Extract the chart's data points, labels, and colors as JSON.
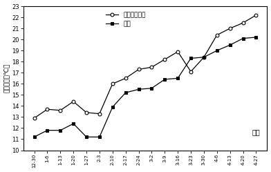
{
  "x_labels": [
    "12-30",
    "1-6",
    "1-13",
    "1-20",
    "1-27",
    "2-3",
    "2-10",
    "2-17",
    "2-24",
    "3-2",
    "3-9",
    "3-16",
    "3-23",
    "3-30",
    "4-6",
    "4-13",
    "4-20",
    "4-27"
  ],
  "series1_name": "无纹布栽植袋",
  "series2_name": "对照",
  "series1_values": [
    12.9,
    13.7,
    13.6,
    14.4,
    13.4,
    13.3,
    16.0,
    16.5,
    17.3,
    17.5,
    18.2,
    18.9,
    17.1,
    18.4,
    20.4,
    21.0,
    21.5,
    22.2
  ],
  "series2_values": [
    11.2,
    11.8,
    11.8,
    12.4,
    11.2,
    11.2,
    13.9,
    15.2,
    15.5,
    15.6,
    16.4,
    16.5,
    18.3,
    18.4,
    19.0,
    19.5,
    20.1,
    20.2
  ],
  "ylabel": "土壤温度（℃）",
  "xlabel": "日期",
  "ylim": [
    10,
    23
  ],
  "yticks": [
    10,
    11,
    12,
    13,
    14,
    15,
    16,
    17,
    18,
    19,
    20,
    21,
    22,
    23
  ],
  "bg_color": "#ffffff"
}
